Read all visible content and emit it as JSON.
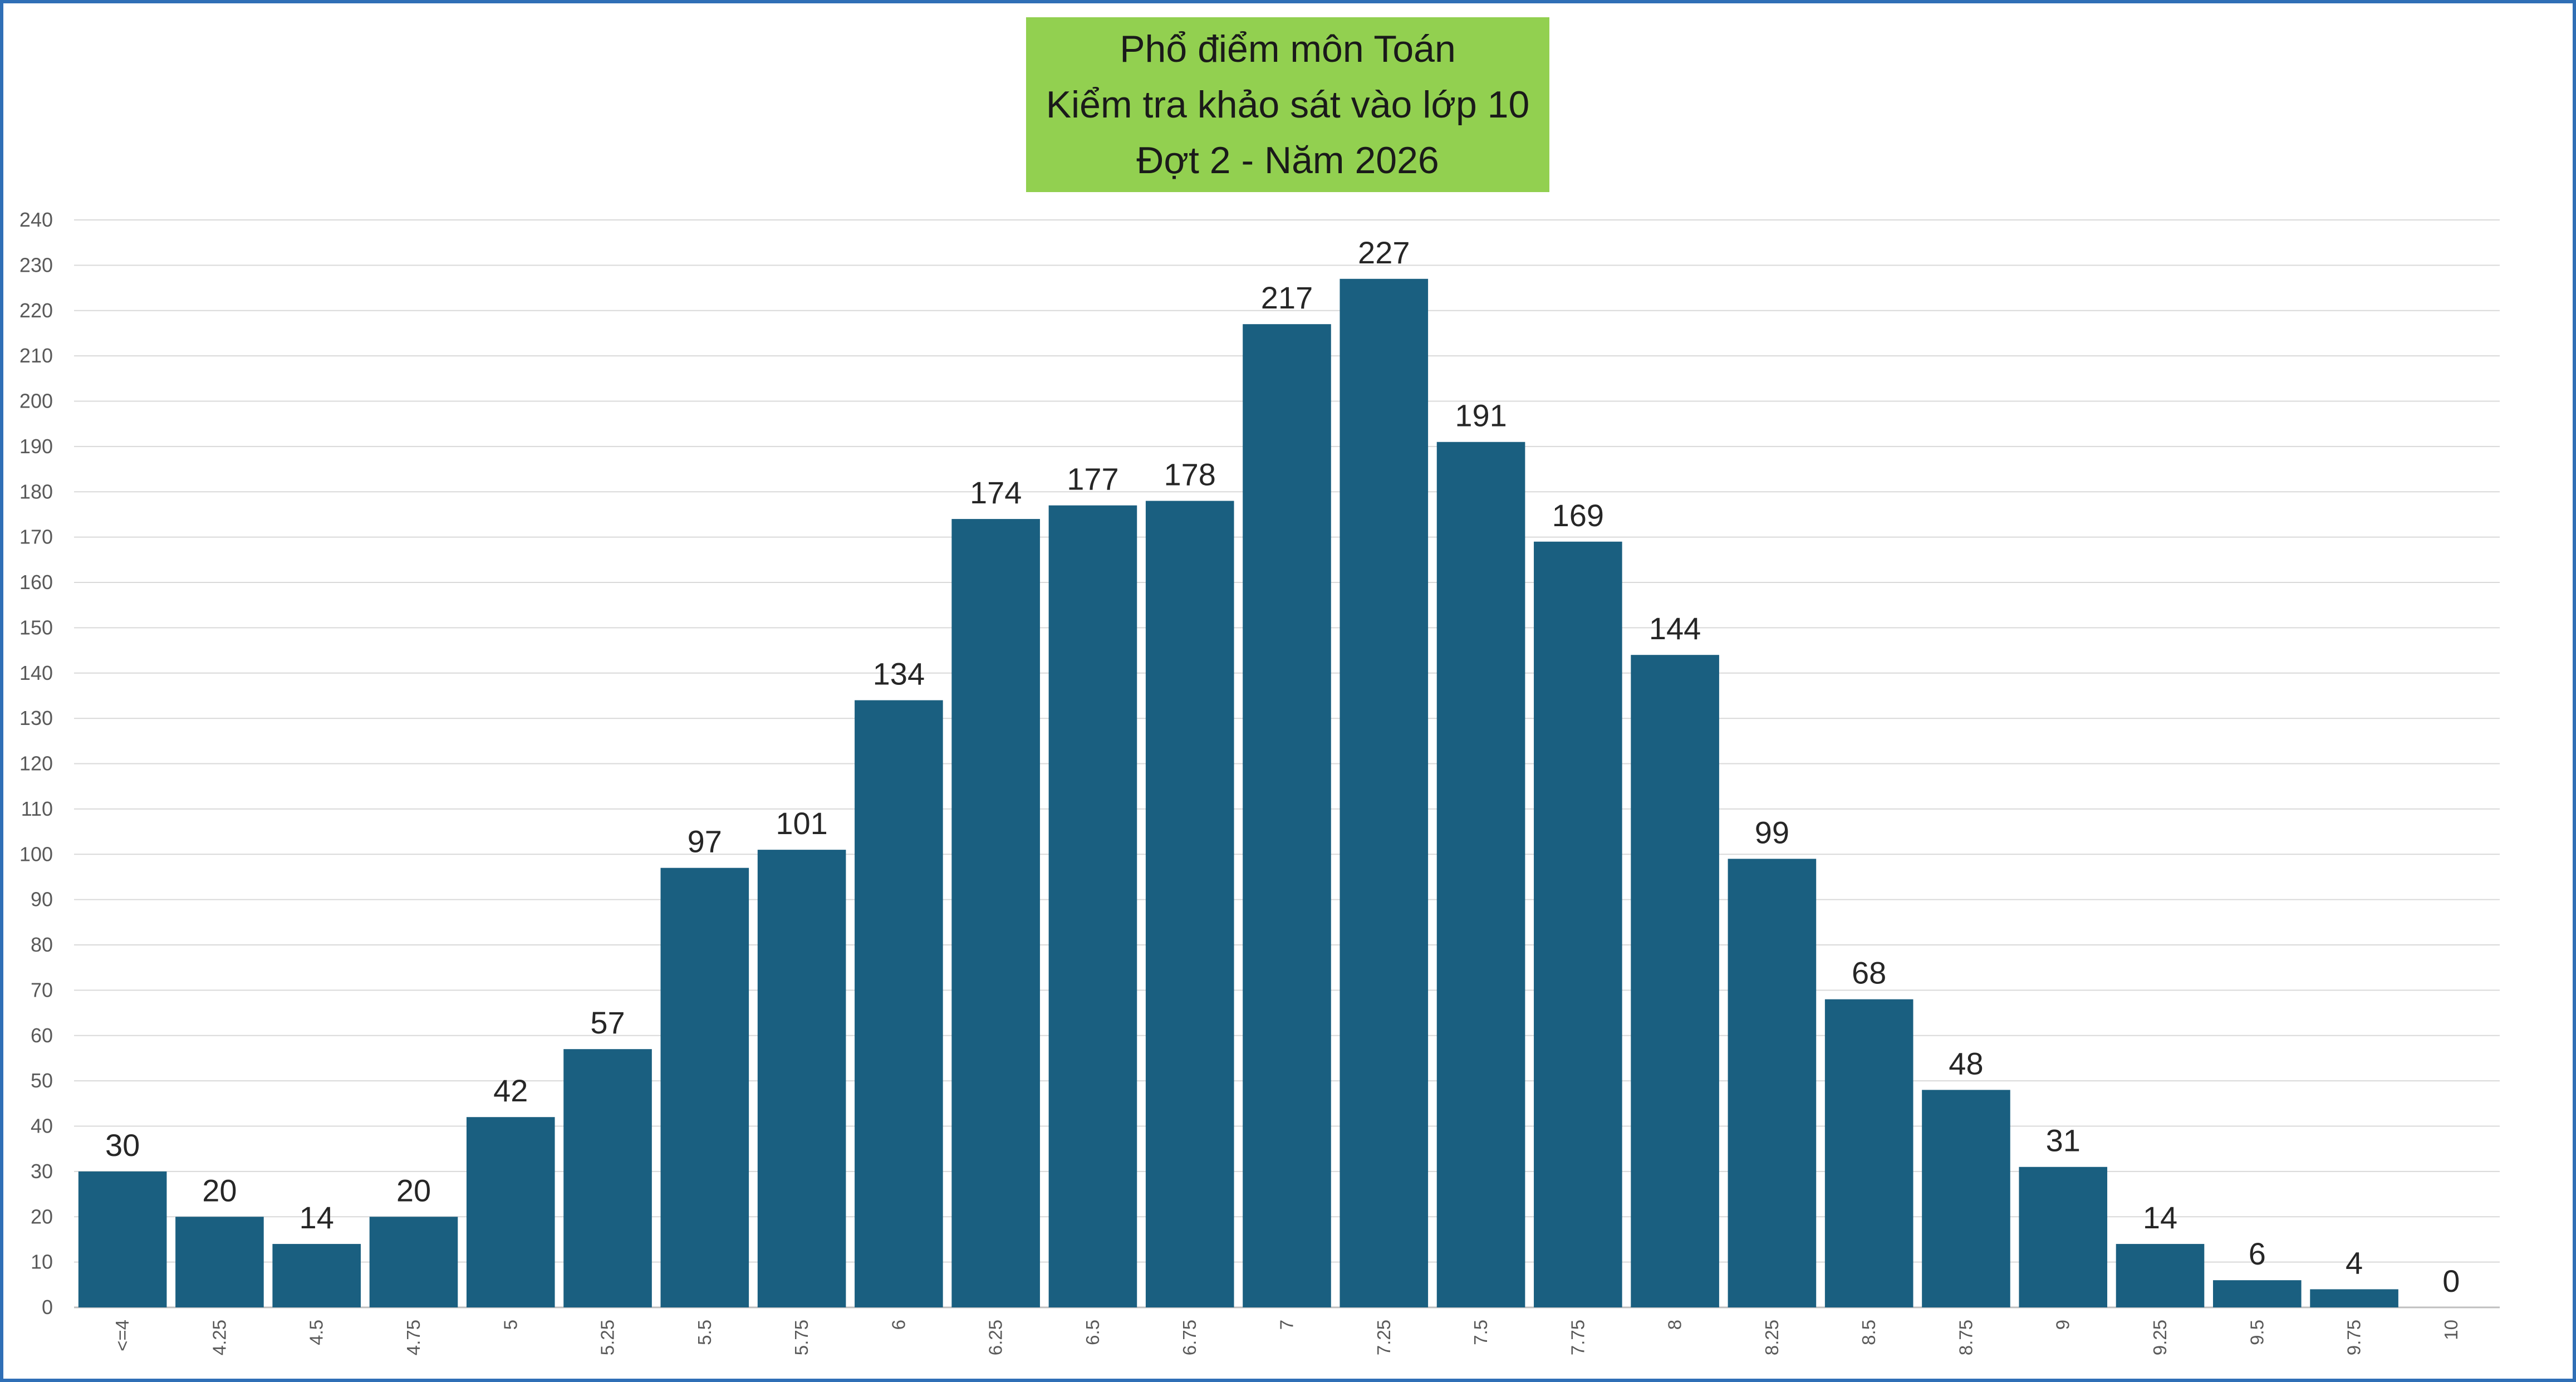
{
  "chart_data": {
    "type": "bar",
    "title": [
      "Phổ điểm môn Toán",
      "Kiểm tra khảo sát vào lớp 10",
      "Đợt 2 - Năm 2026"
    ],
    "categories": [
      "<=4",
      "4.25",
      "4.5",
      "4.75",
      "5",
      "5.25",
      "5.5",
      "5.75",
      "6",
      "6.25",
      "6.5",
      "6.75",
      "7",
      "7.25",
      "7.5",
      "7.75",
      "8",
      "8.25",
      "8.5",
      "8.75",
      "9",
      "9.25",
      "9.5",
      "9.75",
      "10"
    ],
    "values": [
      30,
      20,
      14,
      20,
      42,
      57,
      97,
      101,
      134,
      174,
      177,
      178,
      217,
      227,
      191,
      169,
      144,
      99,
      68,
      48,
      31,
      14,
      6,
      4,
      0
    ],
    "ylim": [
      0,
      240
    ],
    "ytick_step": 10,
    "grid": true,
    "legend": "none",
    "bar_color": "#1a5f80",
    "title_background": "#92d050",
    "frame_color": "#2f6fb6"
  }
}
